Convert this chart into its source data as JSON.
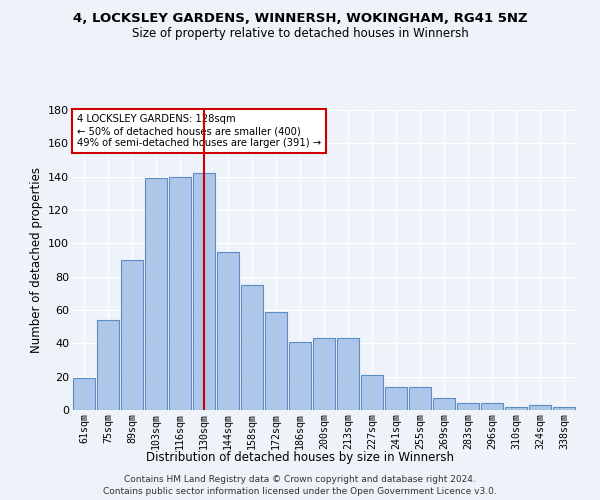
{
  "title1": "4, LOCKSLEY GARDENS, WINNERSH, WOKINGHAM, RG41 5NZ",
  "title2": "Size of property relative to detached houses in Winnersh",
  "xlabel": "Distribution of detached houses by size in Winnersh",
  "ylabel": "Number of detached properties",
  "bin_labels": [
    "61sqm",
    "75sqm",
    "89sqm",
    "103sqm",
    "116sqm",
    "130sqm",
    "144sqm",
    "158sqm",
    "172sqm",
    "186sqm",
    "200sqm",
    "213sqm",
    "227sqm",
    "241sqm",
    "255sqm",
    "269sqm",
    "283sqm",
    "296sqm",
    "310sqm",
    "324sqm",
    "338sqm"
  ],
  "bar_heights": [
    19,
    54,
    90,
    139,
    140,
    142,
    95,
    75,
    59,
    41,
    43,
    43,
    21,
    14,
    14,
    7,
    4,
    4,
    2,
    3,
    2
  ],
  "bar_color": "#aec6e8",
  "bar_edge_color": "#5b8ec4",
  "vline_x": 5,
  "vline_color": "#cc0000",
  "annotation_line1": "4 LOCKSLEY GARDENS: 128sqm",
  "annotation_line2": "← 50% of detached houses are smaller (400)",
  "annotation_line3": "49% of semi-detached houses are larger (391) →",
  "box_color": "#cc0000",
  "ylim": [
    0,
    180
  ],
  "yticks": [
    0,
    20,
    40,
    60,
    80,
    100,
    120,
    140,
    160,
    180
  ],
  "footnote1": "Contains HM Land Registry data © Crown copyright and database right 2024.",
  "footnote2": "Contains public sector information licensed under the Open Government Licence v3.0.",
  "background_color": "#eef2f9"
}
